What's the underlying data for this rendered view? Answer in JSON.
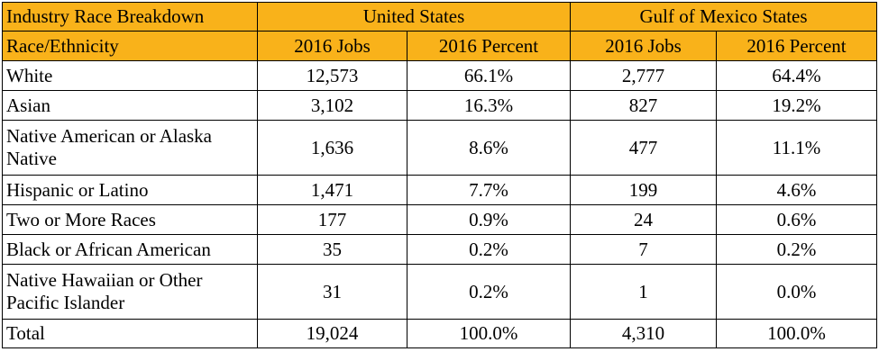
{
  "table": {
    "title": "Industry Race Breakdown",
    "group_headers": [
      "United States",
      "Gulf of Mexico States"
    ],
    "row_label_header": "Race/Ethnicity",
    "sub_headers": [
      "2016 Jobs",
      "2016 Percent",
      "2016 Jobs",
      "2016 Percent"
    ],
    "rows": [
      {
        "label": "White",
        "us_jobs": "12,573",
        "us_percent": "66.1%",
        "gulf_jobs": "2,777",
        "gulf_percent": "64.4%"
      },
      {
        "label": "Asian",
        "us_jobs": "3,102",
        "us_percent": "16.3%",
        "gulf_jobs": "827",
        "gulf_percent": "19.2%"
      },
      {
        "label": "Native American or Alaska Native",
        "us_jobs": "1,636",
        "us_percent": "8.6%",
        "gulf_jobs": "477",
        "gulf_percent": "11.1%"
      },
      {
        "label": "Hispanic or Latino",
        "us_jobs": "1,471",
        "us_percent": "7.7%",
        "gulf_jobs": "199",
        "gulf_percent": "4.6%"
      },
      {
        "label": "Two or More Races",
        "us_jobs": "177",
        "us_percent": "0.9%",
        "gulf_jobs": "24",
        "gulf_percent": "0.6%"
      },
      {
        "label": "Black or African American",
        "us_jobs": "35",
        "us_percent": "0.2%",
        "gulf_jobs": "7",
        "gulf_percent": "0.2%"
      },
      {
        "label": "Native Hawaiian or Other Pacific Islander",
        "us_jobs": "31",
        "us_percent": "0.2%",
        "gulf_jobs": "1",
        "gulf_percent": "0.0%"
      },
      {
        "label": "Total",
        "us_jobs": "19,024",
        "us_percent": "100.0%",
        "gulf_jobs": "4,310",
        "gulf_percent": "100.0%"
      }
    ],
    "colors": {
      "header_fill": "#f9b21a",
      "border": "#000000",
      "text": "#000000"
    }
  }
}
